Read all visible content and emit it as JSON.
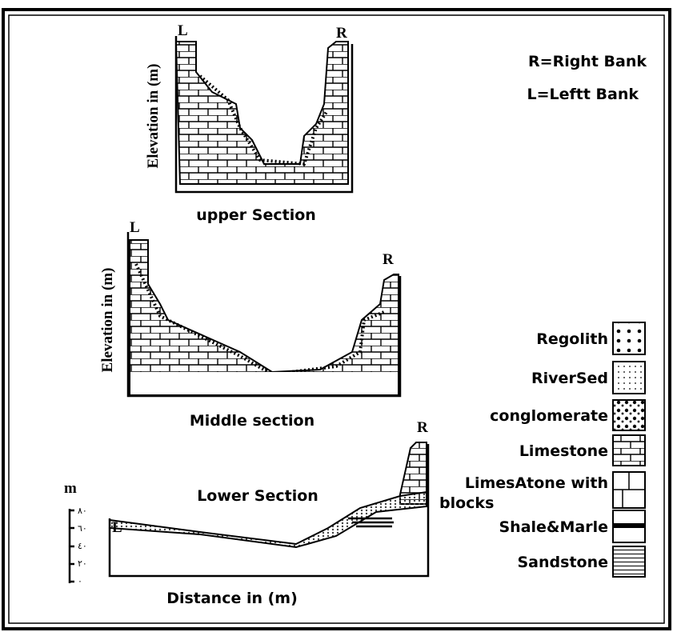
{
  "notes": [
    "R=Right Bank",
    "L=Leftt Bank"
  ],
  "sections": [
    {
      "title": "upper Section",
      "left_label": "L",
      "right_label": "R",
      "y_axis_label": "Elevation  in (m)"
    },
    {
      "title": "Middle section",
      "left_label": "L",
      "right_label": "R",
      "y_axis_label": "Elevation  in (m)"
    },
    {
      "title": "Lower Section",
      "left_label": "L",
      "right_label": "R",
      "x_axis_label": "Distance in  (m)"
    }
  ],
  "scale": {
    "unit": "m",
    "ticks": [
      "٨٠",
      "٦٠",
      "٤٠",
      "٢٠",
      "٠"
    ]
  },
  "legend": [
    "Regolith",
    "RiverSed",
    "conglomerate",
    "Limestone",
    "LimesAtone with blocks",
    "Shale&Marle",
    "Sandstone"
  ]
}
